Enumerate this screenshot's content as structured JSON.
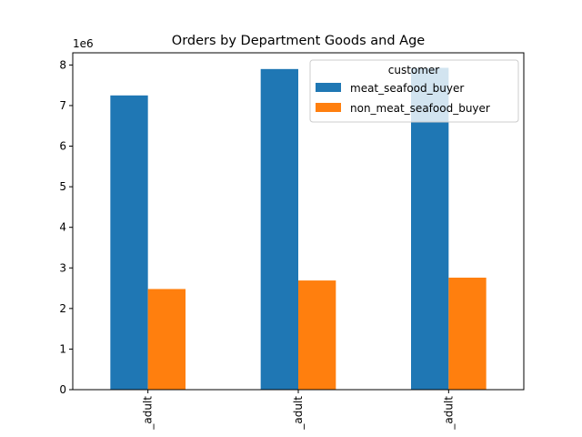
{
  "chart_data": {
    "type": "bar",
    "title": "Orders by Department Goods and Age",
    "xlabel": "",
    "ylabel": "",
    "y_scale_label": "1e6",
    "categories": [
      "_adult",
      "_adult",
      "_adult"
    ],
    "series": [
      {
        "name": "meat_seafood_buyer",
        "values": [
          7.25,
          7.9,
          7.93
        ],
        "color": "#1f77b4"
      },
      {
        "name": "non_meat_seafood_buyer",
        "values": [
          2.48,
          2.69,
          2.76
        ],
        "color": "#ff7f0e"
      }
    ],
    "ylim": [
      0,
      8.3
    ],
    "yticks": [
      0,
      1,
      2,
      3,
      4,
      5,
      6,
      7,
      8
    ],
    "grid": false,
    "legend": {
      "title": "customer",
      "position": "top-right"
    }
  }
}
